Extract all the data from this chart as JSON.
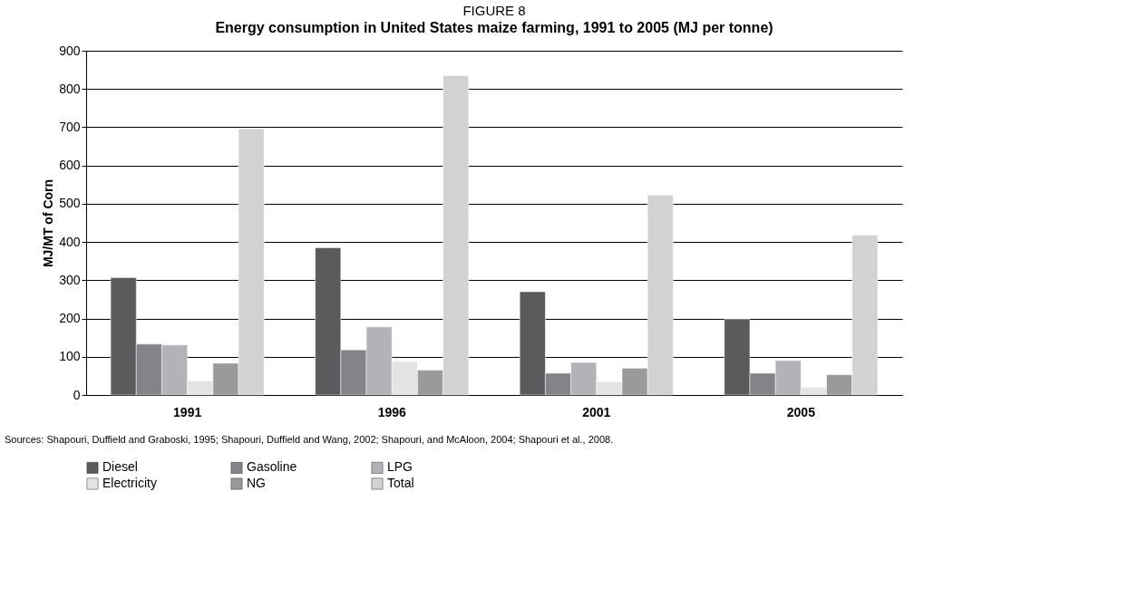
{
  "chart_data": {
    "type": "bar",
    "title": "FIGURE 8",
    "subtitle": "Energy consumption in United States maize farming, 1991 to 2005 (MJ per tonne)",
    "ylabel": "MJ/MT of Corn",
    "categories": [
      "1991",
      "1996",
      "2001",
      "2005"
    ],
    "series": [
      {
        "name": "Diesel",
        "color": "#5a5b5d",
        "values": [
          307,
          385,
          270,
          198
        ]
      },
      {
        "name": "Gasoline",
        "color": "#838487",
        "values": [
          133,
          118,
          57,
          57
        ]
      },
      {
        "name": "LPG",
        "color": "#b1b3b6",
        "values": [
          131,
          178,
          85,
          90
        ]
      },
      {
        "name": "Electricity",
        "color": "#e4e4e4",
        "values": [
          37,
          88,
          35,
          20
        ]
      },
      {
        "name": "NG",
        "color": "#9a9a9a",
        "values": [
          83,
          65,
          70,
          53
        ]
      },
      {
        "name": "Total",
        "color": "#d1d2d4",
        "values": [
          696,
          835,
          523,
          418
        ]
      }
    ],
    "ylim": [
      0,
      900
    ],
    "yticks": [
      0,
      100,
      200,
      300,
      400,
      500,
      600,
      700,
      800,
      900
    ],
    "grid": "y",
    "legend": "bottom",
    "annotations": [
      "Sources: Shapouri, Duffield and Graboski, 1995; Shapouri, Duffield and Wang, 2002; Shapouri, and McAloon, 2004; Shapouri et al., 2008."
    ]
  }
}
